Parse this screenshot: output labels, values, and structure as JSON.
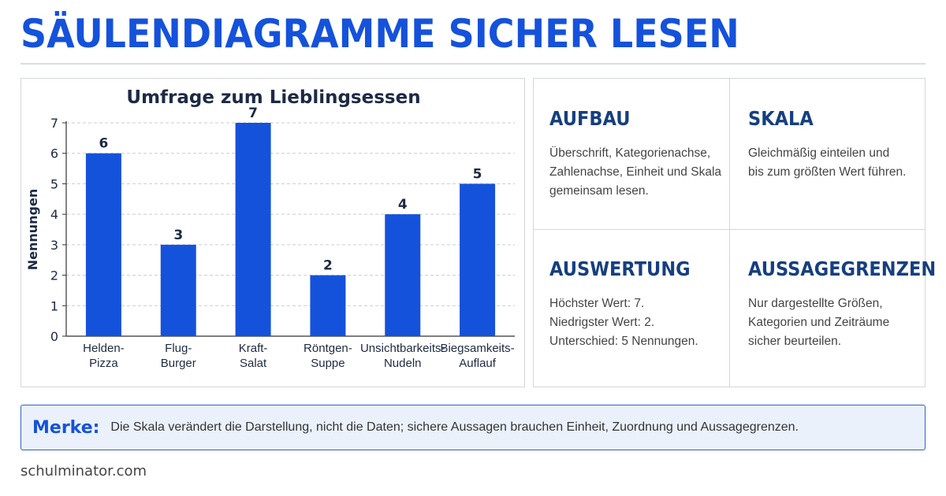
{
  "page": {
    "title": "SÄULENDIAGRAMME SICHER LESEN",
    "footer": "schulminator.com"
  },
  "colors": {
    "accent": "#1552db",
    "heading_dark": "#163f7f",
    "note_bg": "#eaf1fb"
  },
  "chart_data": {
    "type": "bar",
    "title": "Umfrage zum Lieblingsessen",
    "xlabel": "",
    "ylabel": "Nennungen",
    "ylim": [
      0,
      7
    ],
    "yticks": [
      0,
      1,
      2,
      3,
      4,
      5,
      6,
      7
    ],
    "grid": true,
    "categories": [
      [
        "Helden-",
        "Pizza"
      ],
      [
        "Flug-",
        "Burger"
      ],
      [
        "Kraft-",
        "Salat"
      ],
      [
        "Röntgen-",
        "Suppe"
      ],
      [
        "Unsichtbarkeits-",
        "Nudeln"
      ],
      [
        "Biegsamkeits-",
        "Auflauf"
      ]
    ],
    "values": [
      6,
      3,
      7,
      2,
      4,
      5
    ],
    "data_labels": true,
    "bar_color": "#1552db"
  },
  "info": {
    "aufbau": {
      "heading": "AUFBAU",
      "text": "Überschrift, Kategorienachse,\nZahlenachse, Einheit und Skala\ngemeinsam lesen."
    },
    "skala": {
      "heading": "SKALA",
      "text": "Gleichmäßig einteilen und\nbis zum größten Wert führen."
    },
    "auswertung": {
      "heading": "AUSWERTUNG",
      "text": "Höchster Wert: 7.\nNiedrigster Wert: 2.\nUnterschied: 5 Nennungen."
    },
    "aussagegrenzen": {
      "heading": "AUSSAGEGRENZEN",
      "text": "Nur dargestellte Größen,\nKategorien und Zeiträume\nsicher beurteilen."
    }
  },
  "note": {
    "label": "Merke:",
    "text": "Die Skala verändert die Darstellung, nicht die Daten; sichere Aussagen brauchen Einheit, Zuordnung und Aussagegrenzen."
  }
}
